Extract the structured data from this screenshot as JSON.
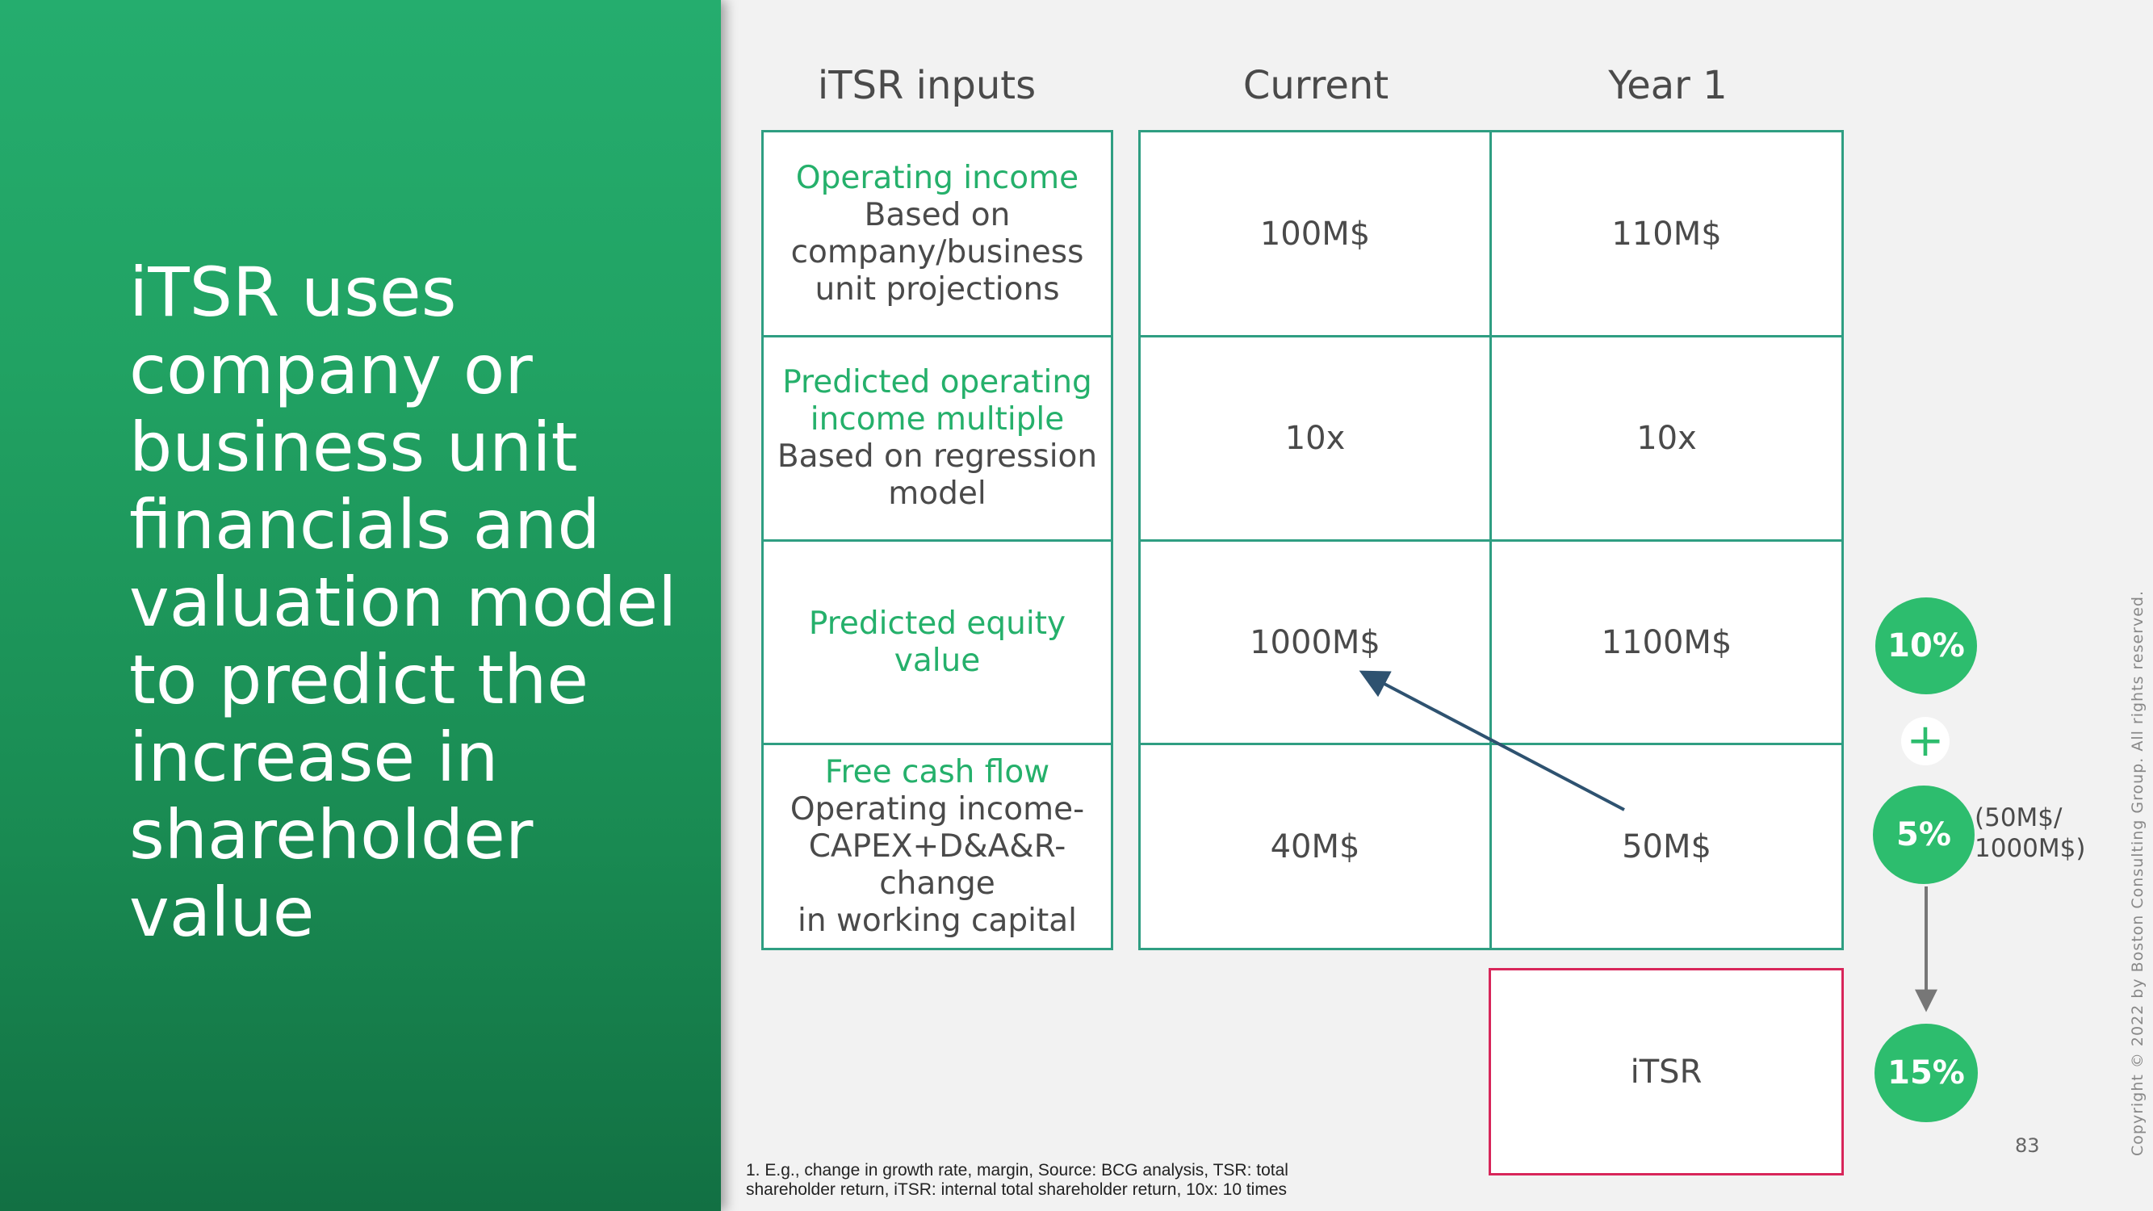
{
  "headline": "iTSR uses\ncompany or\nbusiness unit\nfinancials and\nvaluation model\nto predict the\nincrease in\nshareholder\nvalue",
  "columns": {
    "inputs": "iTSR inputs",
    "current": "Current",
    "year1": "Year 1"
  },
  "rows": [
    {
      "title": "Operating income",
      "desc": "Based on\ncompany/business\nunit projections",
      "current": "100M$",
      "year1": "110M$"
    },
    {
      "title": "Predicted operating\nincome multiple",
      "desc": "Based on regression\nmodel",
      "current": "10x",
      "year1": "10x"
    },
    {
      "title": "Predicted equity value",
      "desc": "",
      "current": "1000M$",
      "year1": "1100M$"
    },
    {
      "title": "Free cash flow",
      "desc": "Operating income-\nCAPEX+D&A&R-change\nin working capital",
      "current": "40M$",
      "year1": "50M$"
    }
  ],
  "itsr_label": "iTSR",
  "circles": {
    "growth": "10%",
    "plus": "+",
    "yield": "5%",
    "yield_note": "(50M$/\n1000M$)",
    "total": "15%"
  },
  "footnote": "1. E.g., change in growth rate, margin, Source: BCG analysis, TSR: total shareholder return, iTSR: internal total shareholder return, 10x: 10 times",
  "page_number": "83",
  "copyright": "Copyright © 2022 by Boston Consulting Group. All rights reserved.",
  "colors": {
    "green": "#25ad6e",
    "table_border": "#2f9e82",
    "itsr_border": "#d8265a",
    "arrow": "#2e5270"
  }
}
